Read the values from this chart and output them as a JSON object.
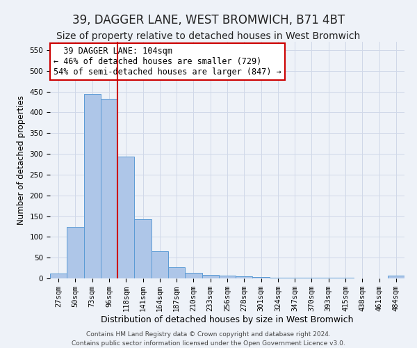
{
  "title": "39, DAGGER LANE, WEST BROMWICH, B71 4BT",
  "subtitle": "Size of property relative to detached houses in West Bromwich",
  "xlabel": "Distribution of detached houses by size in West Bromwich",
  "ylabel": "Number of detached properties",
  "bar_labels": [
    "27sqm",
    "50sqm",
    "73sqm",
    "96sqm",
    "118sqm",
    "141sqm",
    "164sqm",
    "187sqm",
    "210sqm",
    "233sqm",
    "256sqm",
    "278sqm",
    "301sqm",
    "324sqm",
    "347sqm",
    "370sqm",
    "393sqm",
    "415sqm",
    "438sqm",
    "461sqm",
    "484sqm"
  ],
  "bar_values": [
    12,
    124,
    445,
    433,
    293,
    143,
    65,
    27,
    14,
    8,
    6,
    5,
    3,
    2,
    2,
    1,
    1,
    1,
    0,
    0,
    6
  ],
  "bar_color": "#aec6e8",
  "bar_edge_color": "#5b9bd5",
  "grid_color": "#d0d8e8",
  "background_color": "#eef2f8",
  "red_line_x": 3.5,
  "annotation_text": "  39 DAGGER LANE: 104sqm\n← 46% of detached houses are smaller (729)\n54% of semi-detached houses are larger (847) →",
  "annotation_box_color": "#ffffff",
  "annotation_box_edge": "#cc0000",
  "ylim": [
    0,
    570
  ],
  "yticks": [
    0,
    50,
    100,
    150,
    200,
    250,
    300,
    350,
    400,
    450,
    500,
    550
  ],
  "footnote": "Contains HM Land Registry data © Crown copyright and database right 2024.\nContains public sector information licensed under the Open Government Licence v3.0.",
  "title_fontsize": 12,
  "subtitle_fontsize": 10,
  "xlabel_fontsize": 9,
  "ylabel_fontsize": 8.5,
  "tick_fontsize": 7.5,
  "annot_fontsize": 8.5,
  "footnote_fontsize": 6.5
}
